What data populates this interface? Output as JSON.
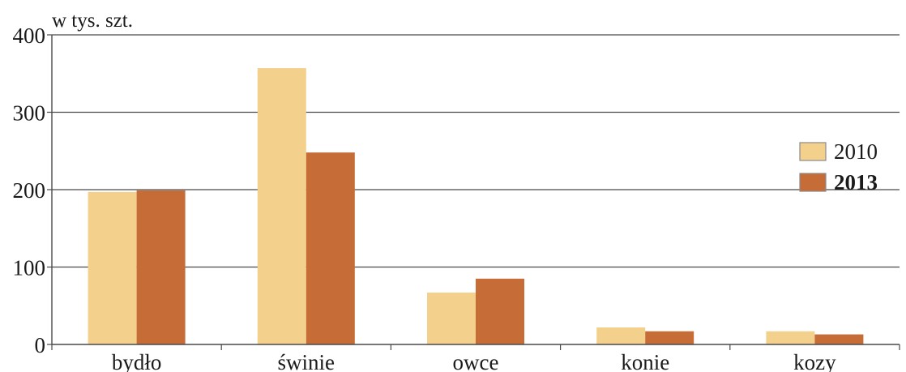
{
  "chart_data": {
    "type": "bar",
    "unit_label": "w tys. szt.",
    "categories": [
      "bydło",
      "świnie",
      "owce",
      "konie",
      "kozy"
    ],
    "series": [
      {
        "name": "2010",
        "values": [
          197,
          357,
          67,
          22,
          17
        ],
        "color": "#f3d18d"
      },
      {
        "name": "2013",
        "values": [
          199,
          248,
          85,
          17,
          13
        ],
        "color": "#c66c37"
      }
    ],
    "ylim": [
      0,
      400
    ],
    "yticks": [
      "0",
      "100",
      "200",
      "300",
      "400"
    ],
    "grid": true,
    "legend_position": "right"
  }
}
